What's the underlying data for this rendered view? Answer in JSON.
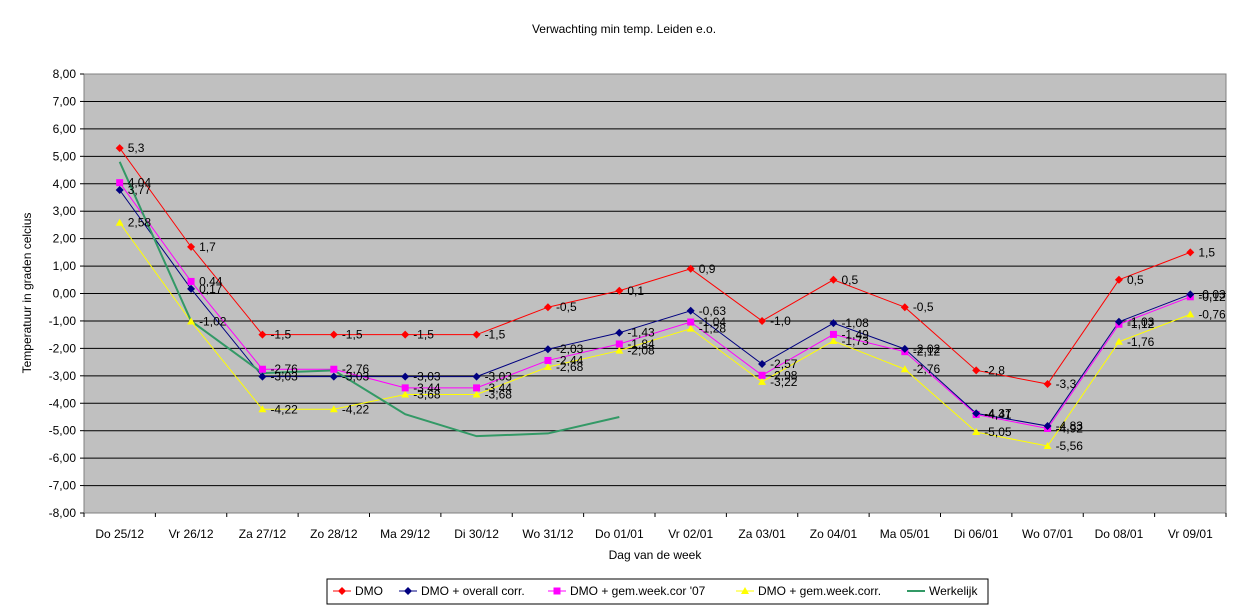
{
  "chart_data": {
    "type": "line",
    "title": "Verwachting min temp. Leiden e.o.",
    "xlabel": "Dag van de week",
    "ylabel": "Temperatuur in graden celcius",
    "ylim": [
      -8,
      8
    ],
    "ystep": 1,
    "ytick_labels": [
      "-8,00",
      "-7,00",
      "-6,00",
      "-5,00",
      "-4,00",
      "-3,00",
      "-2,00",
      "-1,00",
      "0,00",
      "1,00",
      "2,00",
      "3,00",
      "4,00",
      "5,00",
      "6,00",
      "7,00",
      "8,00"
    ],
    "categories": [
      "Do 25/12",
      "Vr 26/12",
      "Za 27/12",
      "Zo 28/12",
      "Ma 29/12",
      "Di 30/12",
      "Wo 31/12",
      "Do 01/01",
      "Vr 02/01",
      "Za 03/01",
      "Zo 04/01",
      "Ma 05/01",
      "Di 06/01",
      "Wo 07/01",
      "Do 08/01",
      "Vr 09/01"
    ],
    "grid": true,
    "legend_position": "bottom",
    "plot_background": "#c0c0c0",
    "series": [
      {
        "name": "DMO",
        "color": "#ff0000",
        "marker": "diamond",
        "values": [
          5.3,
          1.7,
          -1.5,
          -1.5,
          -1.5,
          -1.5,
          -0.5,
          0.1,
          0.9,
          -1.0,
          0.5,
          -0.5,
          -2.8,
          -3.3,
          0.5,
          1.5
        ],
        "labels": [
          "5,3",
          "1,7",
          "-1,5",
          "-1,5",
          "-1,5",
          "-1,5",
          "-0,5",
          "0,1",
          "0,9",
          "-1,0",
          "0,5",
          "-0,5",
          "-2,8",
          "-3,3",
          "0,5",
          "1,5"
        ]
      },
      {
        "name": "DMO + overall corr.",
        "color": "#000080",
        "marker": "diamond",
        "values": [
          3.77,
          0.17,
          -3.03,
          -3.03,
          -3.03,
          -3.03,
          -2.03,
          -1.43,
          -0.63,
          -2.57,
          -1.08,
          -2.02,
          -4.37,
          -4.83,
          -1.03,
          -0.03
        ],
        "labels": [
          "3,77",
          "0,17",
          "-3,03",
          "-3,03",
          "-3,03",
          "-3,03",
          "-2,03",
          "-1,43",
          "-0,63",
          "-2,57",
          "-1,08",
          "-2,02",
          "-4,37",
          "-4,83",
          "-1,03",
          "-0,03"
        ]
      },
      {
        "name": "DMO + gem.week.cor '07",
        "color": "#ff00ff",
        "marker": "square",
        "values": [
          4.04,
          0.44,
          -2.76,
          -2.76,
          -3.44,
          -3.44,
          -2.44,
          -1.84,
          -1.04,
          -2.98,
          -1.49,
          -2.12,
          -4.41,
          -4.92,
          -1.12,
          -0.12
        ],
        "labels": [
          "4,04",
          "0,44",
          "-2,76",
          "-2,76",
          "-3,44",
          "-3,44",
          "-2,44",
          "-1,84",
          "-1,04",
          "-2,98",
          "-1,49",
          "-2,12",
          "-4,41",
          "-4,92",
          "-1,12",
          "-0,12"
        ]
      },
      {
        "name": "DMO + gem.week.corr.",
        "color": "#ffff00",
        "marker": "triangle",
        "values": [
          2.58,
          -1.02,
          -4.22,
          -4.22,
          -3.68,
          -3.68,
          -2.68,
          -2.08,
          -1.28,
          -3.22,
          -1.73,
          -2.76,
          -5.05,
          -5.56,
          -1.76,
          -0.76
        ],
        "labels": [
          "2,58",
          "-1,02",
          "-4,22",
          "-4,22",
          "-3,68",
          "-3,68",
          "-2,68",
          "-2,08",
          "-1,28",
          "-3,22",
          "-1,73",
          "-2,76",
          "-5,05",
          "-5,56",
          "-1,76",
          "-0,76"
        ]
      },
      {
        "name": "Werkelijk",
        "color": "#339966",
        "marker": "none",
        "values": [
          4.8,
          -1.0,
          -2.9,
          -2.8,
          -4.4,
          -5.2,
          -5.1,
          -4.5,
          null,
          null,
          null,
          null,
          null,
          null,
          null,
          null
        ],
        "labels": []
      }
    ]
  }
}
